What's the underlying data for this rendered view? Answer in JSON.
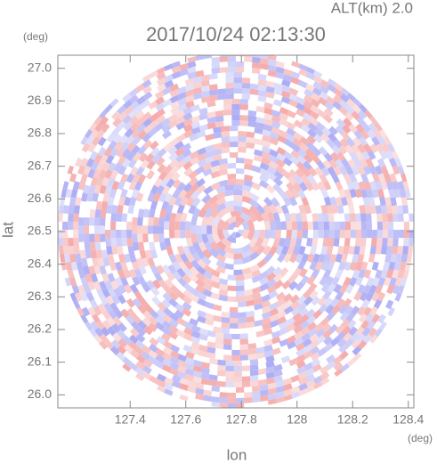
{
  "chart_data": {
    "type": "radar-ppi",
    "title": "2017/10/24 02:13:30",
    "subtitle": "ALT(km) 2.0",
    "x_label": "lon",
    "x_unit": "(deg)",
    "y_label": "lat",
    "y_unit": "(deg)",
    "xlim": [
      127.14,
      128.42
    ],
    "xticks": [
      127.4,
      127.6,
      127.8,
      128.0,
      128.2,
      128.4
    ],
    "ylim": [
      25.96,
      27.04
    ],
    "yticks": [
      {
        "value": 26.0,
        "label": "26.0"
      },
      26.1,
      26.2,
      26.3,
      26.4,
      26.5,
      26.6,
      26.7,
      26.8,
      26.9,
      {
        "value": 27.0,
        "label": "27.0"
      }
    ],
    "colors": [
      "#f4a6a6",
      "#a8a8f4"
    ]
  }
}
